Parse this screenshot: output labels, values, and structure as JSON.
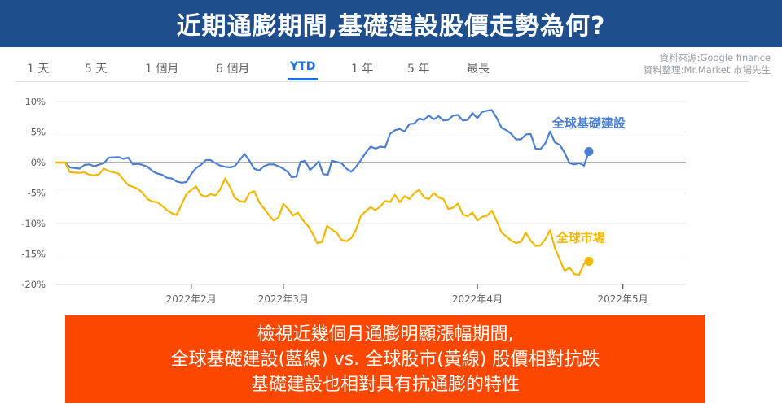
{
  "banner": {
    "title": "近期通膨期間,基礎建設股價走勢為何?"
  },
  "tabs": [
    {
      "label": "1 天",
      "active": false
    },
    {
      "label": "5 天",
      "active": false
    },
    {
      "label": "1 個月",
      "active": false
    },
    {
      "label": "6 個月",
      "active": false
    },
    {
      "label": "YTD",
      "active": true
    },
    {
      "label": "1 年",
      "active": false
    },
    {
      "label": "5 年",
      "active": false
    },
    {
      "label": "最長",
      "active": false
    }
  ],
  "source": {
    "line1": "資料來源:Google finance",
    "line2": "資料整理:Mr.Market 市場先生"
  },
  "callout": {
    "lines": [
      "檢視近幾個月通膨明顯漲幅期間,",
      "全球基礎建設(藍線) vs. 全球股市(黃線) 股價相對抗跌",
      "基礎建設也相對具有抗通膨的特性"
    ]
  },
  "colors": {
    "infrastructure": "#4a7fd4",
    "market": "#f5b800",
    "banner": "#1f4e8c",
    "callout": "#fb4700"
  },
  "chart_data": {
    "type": "line",
    "x_labels": [
      "2022年2月",
      "2022年3月",
      "2022年4月",
      "2022年5月"
    ],
    "x_label_positions": [
      28,
      47,
      87,
      117
    ],
    "x_range": [
      0,
      130
    ],
    "y_ticks": [
      "10%",
      "5%",
      "0%",
      "-5%",
      "-10%",
      "-15%",
      "-20%"
    ],
    "y_tick_values": [
      10,
      5,
      0,
      -5,
      -10,
      -15,
      -20
    ],
    "ylim": [
      -20,
      10
    ],
    "grid": true,
    "series": [
      {
        "name": "全球基礎建設",
        "values": [
          [
            0,
            0.0
          ],
          [
            2,
            0.0
          ],
          [
            3,
            -0.8
          ],
          [
            5,
            -1.0
          ],
          [
            6,
            -0.4
          ],
          [
            7,
            -0.3
          ],
          [
            8,
            -0.6
          ],
          [
            10,
            -0.1
          ],
          [
            11,
            0.8
          ],
          [
            13,
            0.9
          ],
          [
            14,
            0.6
          ],
          [
            15,
            0.8
          ],
          [
            16,
            -0.3
          ],
          [
            17,
            -0.2
          ],
          [
            18,
            -0.4
          ],
          [
            19,
            -0.7
          ],
          [
            20,
            -1.4
          ],
          [
            21,
            -1.8
          ],
          [
            22,
            -2.0
          ],
          [
            23,
            -2.5
          ],
          [
            24,
            -2.6
          ],
          [
            25,
            -3.1
          ],
          [
            26,
            -3.3
          ],
          [
            27,
            -3.2
          ],
          [
            28,
            -1.9
          ],
          [
            29,
            -0.9
          ],
          [
            30,
            -0.4
          ],
          [
            31,
            0.4
          ],
          [
            32,
            0.4
          ],
          [
            33,
            -0.1
          ],
          [
            34,
            -0.5
          ],
          [
            35,
            -0.7
          ],
          [
            36,
            -0.8
          ],
          [
            37,
            -0.6
          ],
          [
            38,
            0.4
          ],
          [
            39,
            1.4
          ],
          [
            40,
            0.3
          ],
          [
            41,
            -1.0
          ],
          [
            42,
            -1.3
          ],
          [
            43,
            -0.6
          ],
          [
            44,
            -0.3
          ],
          [
            45,
            -0.3
          ],
          [
            46,
            -0.6
          ],
          [
            47,
            -1.0
          ],
          [
            48,
            -1.6
          ],
          [
            48.7,
            -2.4
          ],
          [
            49.7,
            -2.3
          ],
          [
            50.5,
            0.1
          ],
          [
            51.5,
            0.3
          ],
          [
            52.5,
            -1.2
          ],
          [
            53.5,
            -0.5
          ],
          [
            54.3,
            0.2
          ],
          [
            55.2,
            -1.9
          ],
          [
            56.2,
            -2.0
          ],
          [
            57,
            0.3
          ],
          [
            58,
            0.1
          ],
          [
            59,
            -0.1
          ],
          [
            60,
            -1.0
          ],
          [
            61,
            -1.5
          ],
          [
            62,
            -0.7
          ],
          [
            63,
            0.4
          ],
          [
            64,
            1.6
          ],
          [
            65,
            2.6
          ],
          [
            66,
            2.3
          ],
          [
            67,
            2.6
          ],
          [
            68,
            2.5
          ],
          [
            69,
            4.7
          ],
          [
            70,
            5.3
          ],
          [
            71,
            5.5
          ],
          [
            72,
            5.1
          ],
          [
            73,
            6.3
          ],
          [
            74,
            6.4
          ],
          [
            75,
            7.2
          ],
          [
            76,
            7.0
          ],
          [
            77,
            7.7
          ],
          [
            78,
            7.1
          ],
          [
            79,
            7.6
          ],
          [
            80,
            6.9
          ],
          [
            81,
            7.0
          ],
          [
            82,
            7.7
          ],
          [
            83,
            7.8
          ],
          [
            84,
            6.9
          ],
          [
            85,
            7.0
          ],
          [
            86,
            8.1
          ],
          [
            87,
            7.3
          ],
          [
            88,
            8.3
          ],
          [
            89,
            8.5
          ],
          [
            90,
            8.6
          ],
          [
            91,
            7.3
          ],
          [
            92,
            5.7
          ],
          [
            93,
            5.3
          ],
          [
            94,
            4.7
          ],
          [
            95,
            3.8
          ],
          [
            96,
            3.8
          ],
          [
            97,
            4.6
          ],
          [
            98,
            4.7
          ],
          [
            99,
            2.3
          ],
          [
            100,
            2.2
          ],
          [
            101,
            3.1
          ],
          [
            102,
            5.1
          ],
          [
            103,
            3.3
          ],
          [
            104,
            2.9
          ],
          [
            105,
            1.6
          ],
          [
            106,
            -0.1
          ],
          [
            107,
            -0.3
          ],
          [
            108,
            -0.1
          ],
          [
            109,
            -0.5
          ],
          [
            110,
            1.8
          ]
        ]
      },
      {
        "name": "全球市場",
        "values": [
          [
            0,
            0.0
          ],
          [
            2,
            0.0
          ],
          [
            3,
            -1.6
          ],
          [
            5,
            -1.7
          ],
          [
            6,
            -1.6
          ],
          [
            7,
            -2.0
          ],
          [
            8,
            -2.1
          ],
          [
            9,
            -1.9
          ],
          [
            10,
            -1.0
          ],
          [
            11,
            -1.4
          ],
          [
            12,
            -1.6
          ],
          [
            13,
            -1.8
          ],
          [
            14,
            -2.8
          ],
          [
            15,
            -3.7
          ],
          [
            16,
            -4.0
          ],
          [
            17,
            -4.3
          ],
          [
            18,
            -5.0
          ],
          [
            19,
            -6.0
          ],
          [
            20,
            -6.4
          ],
          [
            21,
            -6.5
          ],
          [
            22,
            -7.1
          ],
          [
            23,
            -7.8
          ],
          [
            24,
            -8.3
          ],
          [
            25,
            -8.6
          ],
          [
            26,
            -6.9
          ],
          [
            27,
            -5.2
          ],
          [
            28,
            -4.5
          ],
          [
            29,
            -3.9
          ],
          [
            30,
            -5.3
          ],
          [
            31,
            -5.6
          ],
          [
            32,
            -5.2
          ],
          [
            33,
            -5.4
          ],
          [
            34,
            -4.4
          ],
          [
            35,
            -2.6
          ],
          [
            36,
            -4.0
          ],
          [
            37,
            -5.8
          ],
          [
            38,
            -6.3
          ],
          [
            39,
            -6.5
          ],
          [
            40,
            -5.0
          ],
          [
            41,
            -4.7
          ],
          [
            42,
            -6.5
          ],
          [
            43,
            -7.5
          ],
          [
            44,
            -8.6
          ],
          [
            45,
            -9.5
          ],
          [
            46,
            -9.0
          ],
          [
            47,
            -6.8
          ],
          [
            48,
            -7.6
          ],
          [
            49,
            -8.7
          ],
          [
            50,
            -8.2
          ],
          [
            51,
            -9.4
          ],
          [
            52,
            -10.3
          ],
          [
            53,
            -11.6
          ],
          [
            54,
            -13.2
          ],
          [
            55,
            -13.0
          ],
          [
            56,
            -10.4
          ],
          [
            57,
            -11.0
          ],
          [
            58,
            -11.5
          ],
          [
            59,
            -12.7
          ],
          [
            60,
            -12.9
          ],
          [
            61,
            -12.4
          ],
          [
            62,
            -11.0
          ],
          [
            63,
            -8.7
          ],
          [
            64,
            -8.0
          ],
          [
            65,
            -7.3
          ],
          [
            66,
            -7.8
          ],
          [
            67,
            -7.2
          ],
          [
            68,
            -6.3
          ],
          [
            69,
            -6.5
          ],
          [
            70,
            -5.3
          ],
          [
            71,
            -6.5
          ],
          [
            72,
            -5.5
          ],
          [
            73,
            -6.0
          ],
          [
            74,
            -5.0
          ],
          [
            75,
            -4.5
          ],
          [
            76,
            -5.7
          ],
          [
            77,
            -6.0
          ],
          [
            78,
            -5.0
          ],
          [
            79,
            -5.7
          ],
          [
            80,
            -6.0
          ],
          [
            81,
            -7.6
          ],
          [
            82,
            -7.4
          ],
          [
            83,
            -6.7
          ],
          [
            84,
            -8.5
          ],
          [
            85,
            -8.8
          ],
          [
            86,
            -8.2
          ],
          [
            87,
            -9.5
          ],
          [
            88,
            -8.9
          ],
          [
            89,
            -8.7
          ],
          [
            90,
            -7.9
          ],
          [
            91,
            -9.6
          ],
          [
            92,
            -11.5
          ],
          [
            93,
            -12.1
          ],
          [
            94,
            -12.8
          ],
          [
            95,
            -13.2
          ],
          [
            96,
            -13.0
          ],
          [
            97,
            -11.5
          ],
          [
            98,
            -12.8
          ],
          [
            99,
            -13.7
          ],
          [
            100,
            -13.6
          ],
          [
            101,
            -12.6
          ],
          [
            102,
            -11.1
          ],
          [
            103,
            -14.0
          ],
          [
            104,
            -15.9
          ],
          [
            105,
            -17.8
          ],
          [
            106,
            -17.2
          ],
          [
            107,
            -18.3
          ],
          [
            108,
            -18.4
          ],
          [
            109,
            -16.6
          ],
          [
            110,
            -16.2
          ]
        ]
      }
    ]
  }
}
